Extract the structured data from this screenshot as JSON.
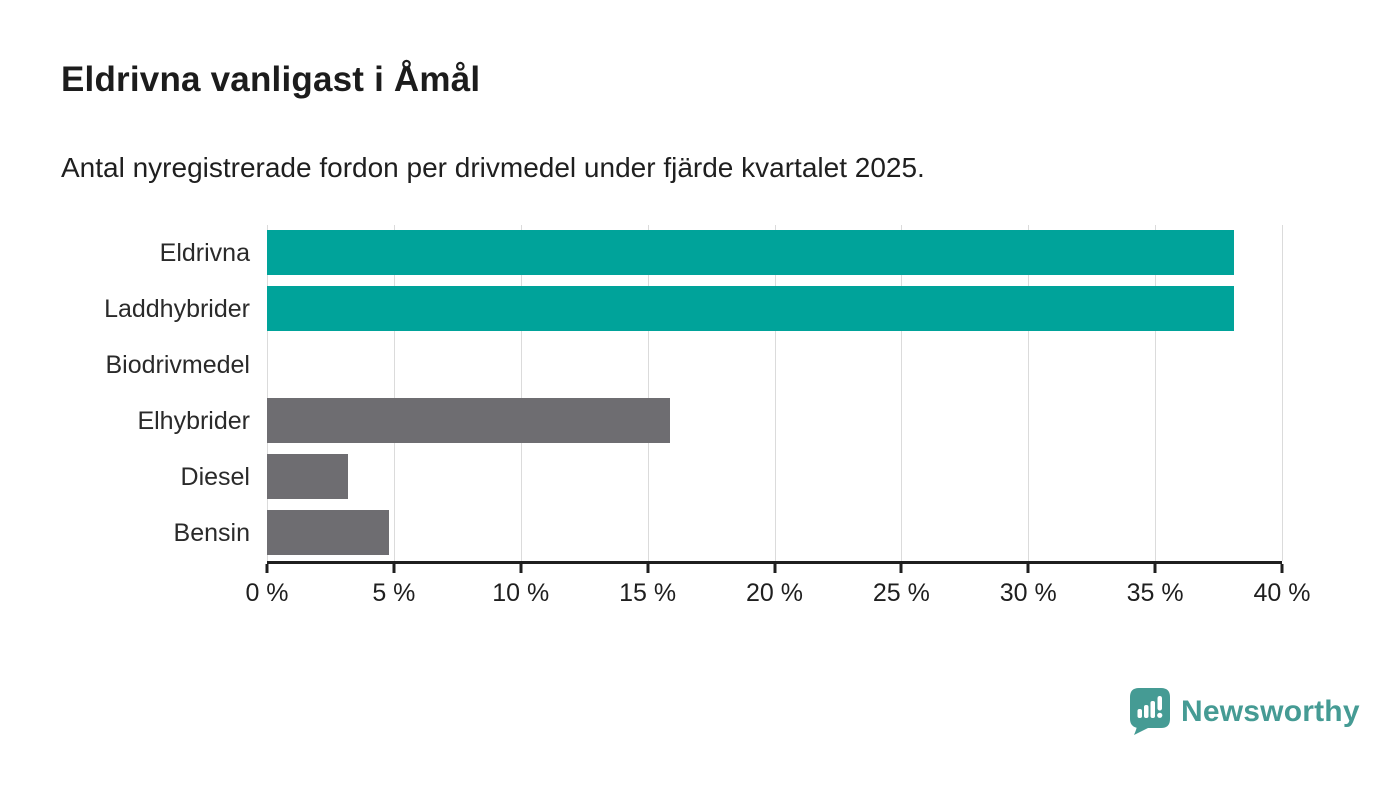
{
  "chart_data": {
    "type": "bar",
    "orientation": "horizontal",
    "title": "Eldrivna vanligast i Åmål",
    "subtitle": "Antal nyregistrerade fordon per drivmedel under fjärde kvartalet 2025.",
    "categories": [
      "Eldrivna",
      "Laddhybrider",
      "Biodrivmedel",
      "Elhybrider",
      "Diesel",
      "Bensin"
    ],
    "values": [
      38.1,
      38.1,
      0,
      15.9,
      3.2,
      4.8
    ],
    "unit": "%",
    "bar_colors": [
      "#00A39A",
      "#00A39A",
      "#6E6D71",
      "#6E6D71",
      "#6E6D71",
      "#6E6D71"
    ],
    "xlim": [
      0,
      40
    ],
    "x_ticks": [
      0,
      5,
      10,
      15,
      20,
      25,
      30,
      35,
      40
    ],
    "x_tick_labels": [
      "0 %",
      "5 %",
      "10 %",
      "15 %",
      "20 %",
      "25 %",
      "30 %",
      "35 %",
      "40 %"
    ],
    "grid": "vertical-gridlines-only",
    "legend": "none"
  },
  "branding": {
    "name": "Newsworthy",
    "icon": "newsworthy-chart-bubble-icon",
    "color": "#459B94"
  },
  "colors": {
    "accent_teal": "#00A39A",
    "neutral_gray": "#6E6D71",
    "gridline": "#DBDBDB",
    "axis": "#1F1F1F",
    "title_text": "#1C1C1C",
    "background": "#FFFFFF"
  }
}
